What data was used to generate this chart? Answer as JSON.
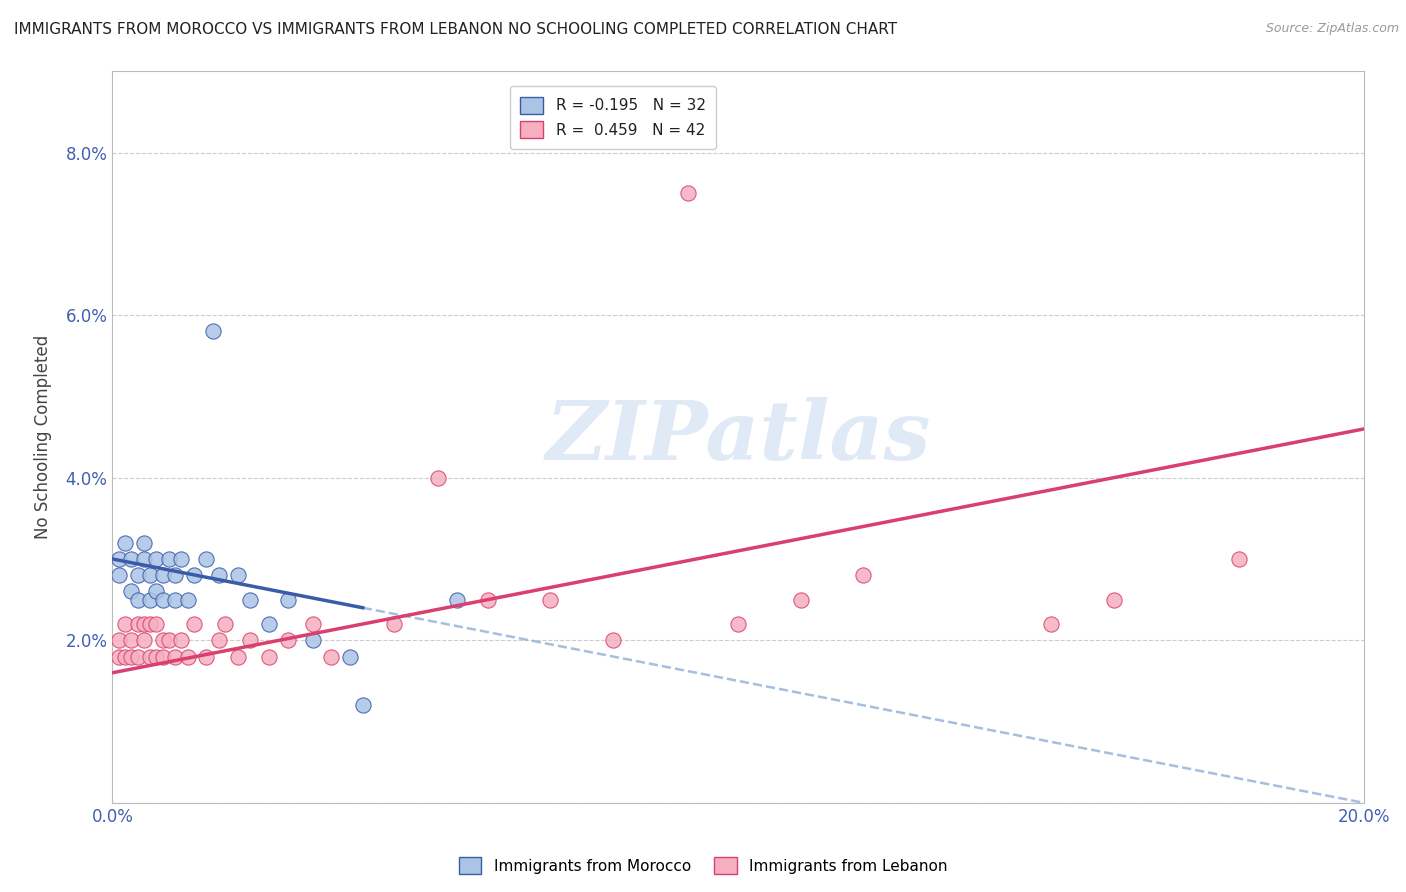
{
  "title": "IMMIGRANTS FROM MOROCCO VS IMMIGRANTS FROM LEBANON NO SCHOOLING COMPLETED CORRELATION CHART",
  "source": "Source: ZipAtlas.com",
  "ylabel": "No Schooling Completed",
  "legend1_r": "R = -0.195",
  "legend1_n": "N = 32",
  "legend2_r": "R =  0.459",
  "legend2_n": "N = 42",
  "xlim": [
    0.0,
    0.2
  ],
  "ylim": [
    0.0,
    0.09
  ],
  "yticks": [
    0.0,
    0.02,
    0.04,
    0.06,
    0.08
  ],
  "ytick_labels": [
    "",
    "2.0%",
    "4.0%",
    "6.0%",
    "8.0%"
  ],
  "xticks": [
    0.0,
    0.02,
    0.04,
    0.06,
    0.08,
    0.1,
    0.12,
    0.14,
    0.16,
    0.18,
    0.2
  ],
  "xtick_labels": [
    "0.0%",
    "",
    "",
    "",
    "",
    "",
    "",
    "",
    "",
    "",
    "20.0%"
  ],
  "color_morocco": "#aac4e6",
  "color_lebanon": "#f5afc0",
  "trendline_morocco_color": "#3a5ca8",
  "trendline_lebanon_color": "#d94070",
  "trendline_dashed_color": "#90b0d8",
  "watermark_text": "ZIPatlas",
  "background_color": "#ffffff",
  "grid_color": "#cccccc",
  "morocco_x": [
    0.001,
    0.001,
    0.002,
    0.003,
    0.003,
    0.004,
    0.004,
    0.005,
    0.005,
    0.006,
    0.006,
    0.007,
    0.007,
    0.008,
    0.008,
    0.009,
    0.01,
    0.01,
    0.011,
    0.012,
    0.013,
    0.015,
    0.016,
    0.017,
    0.02,
    0.022,
    0.025,
    0.028,
    0.032,
    0.038,
    0.04,
    0.055
  ],
  "morocco_y": [
    0.03,
    0.028,
    0.032,
    0.026,
    0.03,
    0.028,
    0.025,
    0.03,
    0.032,
    0.028,
    0.025,
    0.03,
    0.026,
    0.028,
    0.025,
    0.03,
    0.025,
    0.028,
    0.03,
    0.025,
    0.028,
    0.03,
    0.058,
    0.028,
    0.028,
    0.025,
    0.022,
    0.025,
    0.02,
    0.018,
    0.012,
    0.025
  ],
  "lebanon_x": [
    0.001,
    0.001,
    0.002,
    0.002,
    0.003,
    0.003,
    0.004,
    0.004,
    0.005,
    0.005,
    0.006,
    0.006,
    0.007,
    0.007,
    0.008,
    0.008,
    0.009,
    0.01,
    0.011,
    0.012,
    0.013,
    0.015,
    0.017,
    0.018,
    0.02,
    0.022,
    0.025,
    0.028,
    0.032,
    0.035,
    0.045,
    0.052,
    0.06,
    0.07,
    0.08,
    0.092,
    0.1,
    0.11,
    0.12,
    0.15,
    0.16,
    0.18
  ],
  "lebanon_y": [
    0.02,
    0.018,
    0.022,
    0.018,
    0.02,
    0.018,
    0.022,
    0.018,
    0.02,
    0.022,
    0.018,
    0.022,
    0.018,
    0.022,
    0.02,
    0.018,
    0.02,
    0.018,
    0.02,
    0.018,
    0.022,
    0.018,
    0.02,
    0.022,
    0.018,
    0.02,
    0.018,
    0.02,
    0.022,
    0.018,
    0.022,
    0.04,
    0.025,
    0.025,
    0.02,
    0.075,
    0.022,
    0.025,
    0.028,
    0.022,
    0.025,
    0.03
  ],
  "trendline_morocco_x0": 0.0,
  "trendline_morocco_y0": 0.03,
  "trendline_morocco_x1": 0.04,
  "trendline_morocco_y1": 0.024,
  "trendline_lebanon_x0": 0.0,
  "trendline_lebanon_y0": 0.016,
  "trendline_lebanon_x1": 0.2,
  "trendline_lebanon_y1": 0.046,
  "trendline_dash_x0": 0.04,
  "trendline_dash_y0": 0.024,
  "trendline_dash_x1": 0.2,
  "trendline_dash_y1": 0.0
}
